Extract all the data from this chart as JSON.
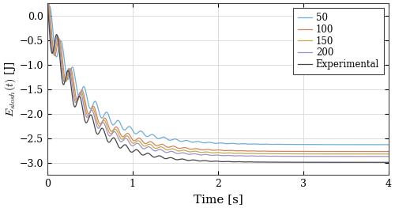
{
  "title": "",
  "xlabel": "Time [s]",
  "ylabel": "$E_{slosh}(t)$ [J]",
  "xlim": [
    0,
    4
  ],
  "ylim": [
    -3.25,
    0.25
  ],
  "yticks": [
    0,
    -0.5,
    -1,
    -1.5,
    -2,
    -2.5,
    -3
  ],
  "xticks": [
    0,
    1,
    2,
    3,
    4
  ],
  "lines": [
    {
      "label": "50",
      "color": "#6BAED6",
      "final_val": -2.63,
      "decay": 2.2,
      "osc_decay": 2.0,
      "amp": 0.38,
      "freq": 7.5,
      "phase": 0.0
    },
    {
      "label": "100",
      "color": "#D4845A",
      "final_val": -2.77,
      "decay": 2.3,
      "osc_decay": 2.1,
      "amp": 0.4,
      "freq": 7.5,
      "phase": 0.02
    },
    {
      "label": "150",
      "color": "#C8A84B",
      "final_val": -2.82,
      "decay": 2.35,
      "osc_decay": 2.15,
      "amp": 0.41,
      "freq": 7.5,
      "phase": 0.03
    },
    {
      "label": "200",
      "color": "#A090C8",
      "final_val": -2.87,
      "decay": 2.4,
      "osc_decay": 2.2,
      "amp": 0.42,
      "freq": 7.5,
      "phase": 0.04
    },
    {
      "label": "Experimental",
      "color": "#444444",
      "final_val": -2.99,
      "decay": 2.5,
      "osc_decay": 2.3,
      "amp": 0.45,
      "freq": 7.5,
      "phase": 0.05
    }
  ],
  "t_end": 4.0,
  "n_points": 3000,
  "linewidth": 0.9,
  "figsize": [
    5.0,
    2.63
  ],
  "dpi": 100
}
